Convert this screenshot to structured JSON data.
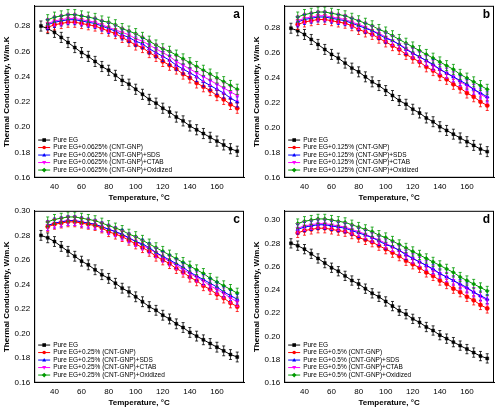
{
  "chart_data": [
    {
      "type": "line",
      "annotation": "a",
      "x_label": "Temperature, °C",
      "y_label": "Thermal Conductivity, W/m.K",
      "x": [
        30,
        35,
        40,
        45,
        50,
        55,
        60,
        65,
        70,
        75,
        80,
        85,
        90,
        95,
        100,
        105,
        110,
        115,
        120,
        125,
        130,
        135,
        140,
        145,
        150,
        155,
        160,
        165,
        170,
        175
      ],
      "xlim": [
        25,
        180
      ],
      "xticks": [
        40,
        60,
        80,
        100,
        120,
        140,
        160
      ],
      "ylim": [
        0.16,
        0.296
      ],
      "yticks": [
        0.16,
        0.18,
        {
          "value": 0.2,
          "label": "0.20"
        },
        0.22,
        0.24,
        0.26,
        0.28
      ],
      "grid": false,
      "legend": "lower left",
      "series": [
        {
          "name": "Pure EG",
          "color": "#000000",
          "marker": "square",
          "error": 0.004,
          "values": [
            0.28,
            0.278,
            0.275,
            0.271,
            0.267,
            0.263,
            0.259,
            0.256,
            0.252,
            0.248,
            0.245,
            0.241,
            0.237,
            0.234,
            0.23,
            0.226,
            0.222,
            0.219,
            0.215,
            0.212,
            0.208,
            0.205,
            0.201,
            0.198,
            0.195,
            0.192,
            0.189,
            0.186,
            0.183,
            0.181
          ]
        },
        {
          "name": "Pure EG+0.0625% (CNT-GNP)",
          "color": "#ff0000",
          "marker": "circle",
          "error": 0.004,
          "values": [
            null,
            0.279,
            0.281,
            0.282,
            0.283,
            0.283,
            0.282,
            0.281,
            0.28,
            0.278,
            0.276,
            0.274,
            0.271,
            0.268,
            0.265,
            0.263,
            0.259,
            0.256,
            0.252,
            0.249,
            0.246,
            0.242,
            0.239,
            0.235,
            0.232,
            0.229,
            0.225,
            0.222,
            0.218,
            0.215
          ]
        },
        {
          "name": "Pure EG+0.0625% (CNT-GNP)+SDS",
          "color": "#0000ff",
          "marker": "triangle",
          "error": 0.004,
          "values": [
            null,
            0.281,
            0.283,
            0.284,
            0.285,
            0.285,
            0.284,
            0.283,
            0.282,
            0.28,
            0.278,
            0.276,
            0.273,
            0.271,
            0.268,
            0.266,
            0.262,
            0.259,
            0.256,
            0.253,
            0.249,
            0.246,
            0.243,
            0.24,
            0.236,
            0.233,
            0.23,
            0.227,
            0.223,
            0.22
          ]
        },
        {
          "name": "Pure EG+0.0625% (CNT-GNP)+CTAB",
          "color": "#ff00ff",
          "marker": "triangle-down",
          "error": 0.004,
          "values": [
            null,
            0.282,
            0.284,
            0.285,
            0.286,
            0.286,
            0.285,
            0.284,
            0.283,
            0.281,
            0.279,
            0.277,
            0.275,
            0.273,
            0.27,
            0.268,
            0.265,
            0.262,
            0.259,
            0.256,
            0.252,
            0.249,
            0.246,
            0.243,
            0.24,
            0.237,
            0.234,
            0.231,
            0.228,
            0.225
          ]
        },
        {
          "name": "Pure EG+0.0625% (CNT-GNP)+Oxidized",
          "color": "#009900",
          "marker": "diamond",
          "error": 0.004,
          "values": [
            null,
            0.285,
            0.287,
            0.288,
            0.289,
            0.289,
            0.288,
            0.287,
            0.286,
            0.284,
            0.283,
            0.281,
            0.278,
            0.276,
            0.274,
            0.271,
            0.268,
            0.265,
            0.262,
            0.26,
            0.257,
            0.254,
            0.251,
            0.248,
            0.245,
            0.242,
            0.239,
            0.236,
            0.233,
            0.23
          ]
        }
      ]
    },
    {
      "type": "line",
      "annotation": "b",
      "x_label": "Temperature, °C",
      "y_label": "Thermal Conductivity, W/m.K",
      "x": [
        30,
        35,
        40,
        45,
        50,
        55,
        60,
        65,
        70,
        75,
        80,
        85,
        90,
        95,
        100,
        105,
        110,
        115,
        120,
        125,
        130,
        135,
        140,
        145,
        150,
        155,
        160,
        165,
        170,
        175
      ],
      "xlim": [
        25,
        180
      ],
      "xticks": [
        40,
        60,
        80,
        100,
        120,
        140,
        160
      ],
      "ylim": [
        0.16,
        0.298
      ],
      "yticks": [
        0.16,
        0.18,
        {
          "value": 0.2,
          "label": "0.20"
        },
        0.22,
        0.24,
        0.26,
        0.28
      ],
      "grid": false,
      "legend": "lower left",
      "series": [
        {
          "name": "Pure EG",
          "color": "#000000",
          "marker": "square",
          "error": 0.004,
          "values": [
            0.28,
            0.278,
            0.275,
            0.271,
            0.267,
            0.263,
            0.259,
            0.256,
            0.252,
            0.248,
            0.245,
            0.241,
            0.237,
            0.234,
            0.23,
            0.226,
            0.222,
            0.219,
            0.215,
            0.212,
            0.208,
            0.205,
            0.201,
            0.198,
            0.195,
            0.192,
            0.189,
            0.186,
            0.183,
            0.181
          ]
        },
        {
          "name": "Pure EG+0.125% (CNT-GNP)",
          "color": "#ff0000",
          "marker": "circle",
          "error": 0.004,
          "values": [
            null,
            0.283,
            0.285,
            0.286,
            0.287,
            0.287,
            0.286,
            0.285,
            0.284,
            0.282,
            0.279,
            0.277,
            0.275,
            0.272,
            0.269,
            0.266,
            0.263,
            0.259,
            0.256,
            0.253,
            0.249,
            0.246,
            0.242,
            0.239,
            0.235,
            0.232,
            0.228,
            0.225,
            0.221,
            0.218
          ]
        },
        {
          "name": "Pure EG+0.125% (CNT-GNP)+SDS",
          "color": "#0000ff",
          "marker": "triangle",
          "error": 0.004,
          "values": [
            null,
            0.285,
            0.287,
            0.288,
            0.289,
            0.289,
            0.288,
            0.287,
            0.286,
            0.284,
            0.282,
            0.28,
            0.278,
            0.275,
            0.272,
            0.27,
            0.267,
            0.263,
            0.26,
            0.257,
            0.254,
            0.251,
            0.247,
            0.244,
            0.241,
            0.238,
            0.235,
            0.231,
            0.228,
            0.225
          ]
        },
        {
          "name": "Pure EG+0.125% (CNT-GNP)+CTAB",
          "color": "#ff00ff",
          "marker": "triangle-down",
          "error": 0.004,
          "values": [
            null,
            0.286,
            0.288,
            0.289,
            0.29,
            0.29,
            0.289,
            0.288,
            0.287,
            0.285,
            0.283,
            0.281,
            0.278,
            0.276,
            0.273,
            0.27,
            0.267,
            0.264,
            0.26,
            0.257,
            0.254,
            0.25,
            0.247,
            0.244,
            0.241,
            0.237,
            0.234,
            0.231,
            0.227,
            0.224
          ]
        },
        {
          "name": "Pure EG+0.125% (CNT-GNP)+Oxidized",
          "color": "#009900",
          "marker": "diamond",
          "error": 0.004,
          "values": [
            null,
            0.289,
            0.291,
            0.292,
            0.293,
            0.293,
            0.292,
            0.291,
            0.29,
            0.288,
            0.286,
            0.284,
            0.282,
            0.279,
            0.277,
            0.274,
            0.271,
            0.268,
            0.265,
            0.262,
            0.259,
            0.256,
            0.253,
            0.25,
            0.247,
            0.243,
            0.24,
            0.237,
            0.234,
            0.231
          ]
        }
      ]
    },
    {
      "type": "line",
      "annotation": "c",
      "x_label": "Temperature, °C",
      "y_label": "Thermal Conductivity, W/m.K",
      "x": [
        30,
        35,
        40,
        45,
        50,
        55,
        60,
        65,
        70,
        75,
        80,
        85,
        90,
        95,
        100,
        105,
        110,
        115,
        120,
        125,
        130,
        135,
        140,
        145,
        150,
        155,
        160,
        165,
        170,
        175
      ],
      "xlim": [
        25,
        180
      ],
      "xticks": [
        40,
        60,
        80,
        100,
        120,
        140,
        160
      ],
      "ylim": [
        0.16,
        0.3
      ],
      "yticks": [
        0.16,
        0.18,
        {
          "value": 0.2,
          "label": "0.20"
        },
        0.22,
        0.24,
        0.26,
        0.28,
        {
          "value": 0.3,
          "label": "0.30"
        }
      ],
      "grid": false,
      "legend": "lower left",
      "series": [
        {
          "name": "Pure EG",
          "color": "#000000",
          "marker": "square",
          "error": 0.004,
          "values": [
            0.28,
            0.278,
            0.275,
            0.271,
            0.267,
            0.263,
            0.259,
            0.256,
            0.252,
            0.248,
            0.245,
            0.241,
            0.237,
            0.234,
            0.23,
            0.226,
            0.222,
            0.219,
            0.215,
            0.212,
            0.208,
            0.205,
            0.201,
            0.198,
            0.195,
            0.192,
            0.189,
            0.186,
            0.183,
            0.181
          ]
        },
        {
          "name": "Pure EG+0.25% (CNT-GNP)",
          "color": "#ff0000",
          "marker": "circle",
          "error": 0.004,
          "values": [
            null,
            0.287,
            0.289,
            0.29,
            0.291,
            0.291,
            0.29,
            0.289,
            0.288,
            0.286,
            0.283,
            0.281,
            0.279,
            0.276,
            0.273,
            0.27,
            0.267,
            0.263,
            0.26,
            0.257,
            0.253,
            0.25,
            0.246,
            0.243,
            0.239,
            0.236,
            0.232,
            0.229,
            0.225,
            0.222
          ]
        },
        {
          "name": "Pure EG+0.25% (CNT-GNP)+SDS",
          "color": "#0000ff",
          "marker": "triangle",
          "error": 0.004,
          "values": [
            null,
            0.288,
            0.29,
            0.291,
            0.292,
            0.292,
            0.291,
            0.29,
            0.289,
            0.287,
            0.285,
            0.283,
            0.281,
            0.278,
            0.275,
            0.273,
            0.27,
            0.266,
            0.263,
            0.26,
            0.257,
            0.254,
            0.25,
            0.247,
            0.244,
            0.241,
            0.238,
            0.234,
            0.231,
            0.228
          ]
        },
        {
          "name": "Pure EG+0.25% (CNT-GNP)+CTAB",
          "color": "#ff00ff",
          "marker": "triangle-down",
          "error": 0.004,
          "values": [
            null,
            0.288,
            0.29,
            0.291,
            0.292,
            0.292,
            0.291,
            0.29,
            0.289,
            0.287,
            0.285,
            0.283,
            0.28,
            0.278,
            0.275,
            0.272,
            0.269,
            0.266,
            0.262,
            0.259,
            0.256,
            0.252,
            0.249,
            0.246,
            0.243,
            0.239,
            0.236,
            0.233,
            0.229,
            0.226
          ]
        },
        {
          "name": "Pure EG+0.25% (CNT-GNP)+Oxidized",
          "color": "#009900",
          "marker": "diamond",
          "error": 0.004,
          "values": [
            null,
            0.291,
            0.293,
            0.294,
            0.295,
            0.295,
            0.294,
            0.293,
            0.292,
            0.29,
            0.288,
            0.286,
            0.284,
            0.281,
            0.279,
            0.276,
            0.273,
            0.27,
            0.267,
            0.264,
            0.261,
            0.258,
            0.255,
            0.252,
            0.249,
            0.245,
            0.242,
            0.239,
            0.236,
            0.233
          ]
        }
      ]
    },
    {
      "type": "line",
      "annotation": "d",
      "x_label": "Temperature, °C",
      "y_label": "Thermal Conductivity, W/m.K",
      "x": [
        30,
        35,
        40,
        45,
        50,
        55,
        60,
        65,
        70,
        75,
        80,
        85,
        90,
        95,
        100,
        105,
        110,
        115,
        120,
        125,
        130,
        135,
        140,
        145,
        150,
        155,
        160,
        165,
        170,
        175
      ],
      "xlim": [
        25,
        180
      ],
      "xticks": [
        40,
        60,
        80,
        100,
        120,
        140,
        160
      ],
      "ylim": [
        0.16,
        0.308
      ],
      "yticks": [
        0.16,
        0.18,
        {
          "value": 0.2,
          "label": "0.20"
        },
        0.22,
        0.24,
        0.26,
        0.28,
        {
          "value": 0.3,
          "label": "0.30"
        }
      ],
      "grid": false,
      "legend": "lower left",
      "series": [
        {
          "name": "Pure EG",
          "color": "#000000",
          "marker": "square",
          "error": 0.004,
          "values": [
            0.28,
            0.278,
            0.275,
            0.271,
            0.267,
            0.263,
            0.259,
            0.256,
            0.252,
            0.248,
            0.245,
            0.241,
            0.237,
            0.234,
            0.23,
            0.226,
            0.222,
            0.219,
            0.215,
            0.212,
            0.208,
            0.205,
            0.201,
            0.198,
            0.195,
            0.192,
            0.189,
            0.186,
            0.183,
            0.181
          ]
        },
        {
          "name": "Pure EG+0.5% (CNT-GNP)",
          "color": "#ff0000",
          "marker": "circle",
          "error": 0.004,
          "values": [
            null,
            0.289,
            0.291,
            0.292,
            0.293,
            0.293,
            0.292,
            0.291,
            0.29,
            0.288,
            0.285,
            0.283,
            0.281,
            0.278,
            0.275,
            0.272,
            0.269,
            0.265,
            0.262,
            0.259,
            0.255,
            0.252,
            0.248,
            0.245,
            0.241,
            0.238,
            0.234,
            0.231,
            0.227,
            0.224
          ]
        },
        {
          "name": "Pure EG+0.5% (CNT-GNP)+SDS",
          "color": "#0000ff",
          "marker": "triangle",
          "error": 0.004,
          "values": [
            null,
            0.292,
            0.294,
            0.295,
            0.296,
            0.296,
            0.295,
            0.294,
            0.293,
            0.291,
            0.289,
            0.287,
            0.285,
            0.282,
            0.279,
            0.277,
            0.274,
            0.27,
            0.267,
            0.264,
            0.261,
            0.258,
            0.254,
            0.251,
            0.248,
            0.245,
            0.242,
            0.238,
            0.235,
            0.232
          ]
        },
        {
          "name": "Pure EG+0.5% (CNT-GNP)+CTAB",
          "color": "#ff00ff",
          "marker": "triangle-down",
          "error": 0.004,
          "values": [
            null,
            0.293,
            0.295,
            0.296,
            0.297,
            0.297,
            0.296,
            0.295,
            0.294,
            0.292,
            0.29,
            0.288,
            0.285,
            0.283,
            0.28,
            0.277,
            0.274,
            0.271,
            0.267,
            0.264,
            0.261,
            0.257,
            0.254,
            0.251,
            0.248,
            0.244,
            0.241,
            0.238,
            0.234,
            0.231
          ]
        },
        {
          "name": "Pure EG+0.5% (CNT-GNP)+Oxidized",
          "color": "#009900",
          "marker": "diamond",
          "error": 0.004,
          "values": [
            null,
            0.297,
            0.299,
            0.3,
            0.301,
            0.301,
            0.3,
            0.299,
            0.298,
            0.296,
            0.294,
            0.292,
            0.29,
            0.287,
            0.285,
            0.282,
            0.279,
            0.276,
            0.273,
            0.27,
            0.267,
            0.264,
            0.261,
            0.258,
            0.255,
            0.251,
            0.248,
            0.245,
            0.242,
            0.239
          ]
        }
      ]
    }
  ]
}
